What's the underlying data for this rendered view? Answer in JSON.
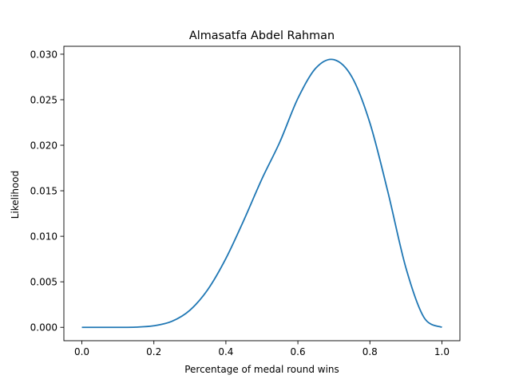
{
  "chart_data": {
    "type": "line",
    "title": "Almasatfa Abdel Rahman",
    "xlabel": "Percentage of medal round wins",
    "ylabel": "Likelihood",
    "xlim": [
      -0.05,
      1.05
    ],
    "ylim": [
      -0.00147,
      0.03087
    ],
    "xticks": [
      0.0,
      0.2,
      0.4,
      0.6,
      0.8,
      1.0
    ],
    "xtick_labels": [
      "0.0",
      "0.2",
      "0.4",
      "0.6",
      "0.8",
      "1.0"
    ],
    "yticks": [
      0.0,
      0.005,
      0.01,
      0.015,
      0.02,
      0.025,
      0.03
    ],
    "ytick_labels": [
      "0.000",
      "0.005",
      "0.010",
      "0.015",
      "0.020",
      "0.025",
      "0.030"
    ],
    "grid": false,
    "legend": "none",
    "line_color": "#1f77b4",
    "series": [
      {
        "x": [
          0.0,
          0.05,
          0.1,
          0.15,
          0.2,
          0.25,
          0.3,
          0.35,
          0.4,
          0.45,
          0.5,
          0.55,
          0.6,
          0.65,
          0.7,
          0.75,
          0.8,
          0.85,
          0.9,
          0.95,
          1.0
        ],
        "values": [
          0.0,
          0.0,
          0.0,
          2e-05,
          0.00017,
          0.00066,
          0.00188,
          0.00416,
          0.00756,
          0.01178,
          0.01629,
          0.02037,
          0.02515,
          0.02848,
          0.0294,
          0.0275,
          0.02245,
          0.01487,
          0.00654,
          0.0011,
          0.0
        ]
      }
    ]
  }
}
